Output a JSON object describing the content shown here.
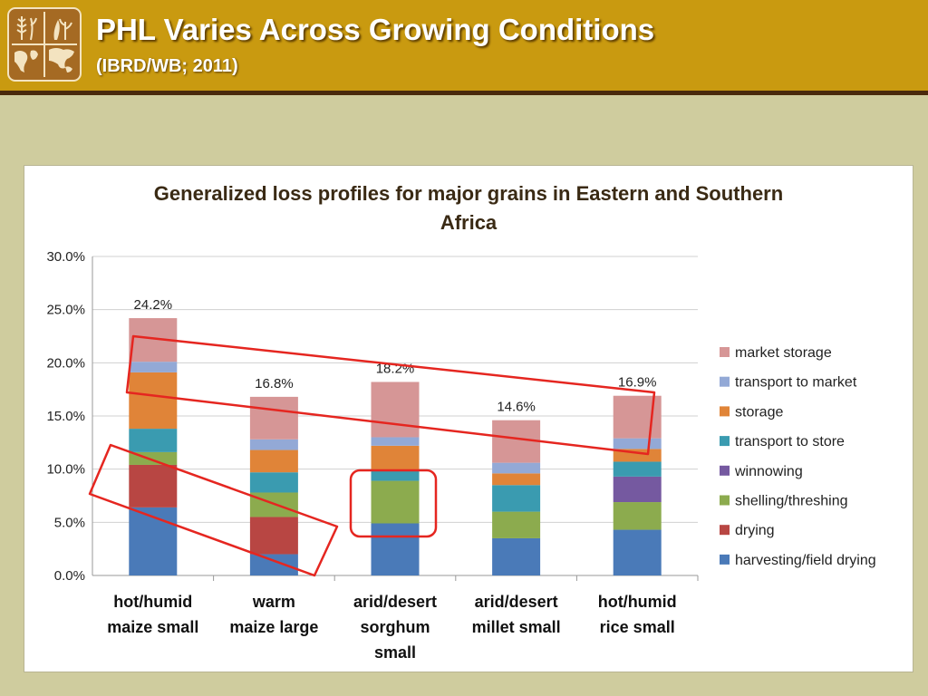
{
  "slide": {
    "title": "PHL Varies Across Growing Conditions",
    "subtitle": "(IBRD/WB; 2011)",
    "logo_icon": "world-map-grain-logo-icon"
  },
  "colors": {
    "header": "#c99a10",
    "background": "#cfcc9e",
    "highlight": "#e52620"
  },
  "chart_data": {
    "type": "bar",
    "stacked": true,
    "title": "Generalized loss profiles for major grains in Eastern and Southern Africa",
    "title_lines": [
      "Generalized loss profiles for major grains in Eastern and Southern",
      "Africa"
    ],
    "categories": [
      [
        "hot/humid",
        "maize small"
      ],
      [
        "warm",
        "maize large"
      ],
      [
        "arid/desert",
        "sorghum",
        "small"
      ],
      [
        "arid/desert",
        "millet small"
      ],
      [
        "hot/humid",
        "rice small"
      ]
    ],
    "yticks": [
      "0.0%",
      "5.0%",
      "10.0%",
      "15.0%",
      "20.0%",
      "25.0%",
      "30.0%"
    ],
    "ylim": [
      0,
      30
    ],
    "grid": true,
    "legend_position": "right",
    "totals": [
      "24.2%",
      "16.8%",
      "18.2%",
      "14.6%",
      "16.9%"
    ],
    "series": [
      {
        "name": "harvesting/field drying",
        "color": "#4a7ab8",
        "values": [
          6.4,
          2.0,
          4.9,
          3.5,
          4.3
        ]
      },
      {
        "name": "drying",
        "color": "#b84643",
        "values": [
          4.0,
          3.5,
          0.0,
          0.0,
          0.0
        ]
      },
      {
        "name": "shelling/threshing",
        "color": "#8cab4e",
        "values": [
          1.2,
          2.3,
          4.0,
          2.5,
          2.6
        ]
      },
      {
        "name": "winnowing",
        "color": "#7559a0",
        "values": [
          0.0,
          0.0,
          0.0,
          0.0,
          2.4
        ]
      },
      {
        "name": "transport to store",
        "color": "#3a9bb0",
        "values": [
          2.2,
          1.9,
          1.0,
          2.5,
          1.4
        ]
      },
      {
        "name": "storage",
        "color": "#e08438",
        "values": [
          5.3,
          2.1,
          2.3,
          1.1,
          1.2
        ]
      },
      {
        "name": "transport to market",
        "color": "#93a9d6",
        "values": [
          1.0,
          1.0,
          0.8,
          1.0,
          1.0
        ]
      },
      {
        "name": "market storage",
        "color": "#d69696",
        "values": [
          4.1,
          4.0,
          5.2,
          4.0,
          4.0
        ]
      }
    ]
  }
}
